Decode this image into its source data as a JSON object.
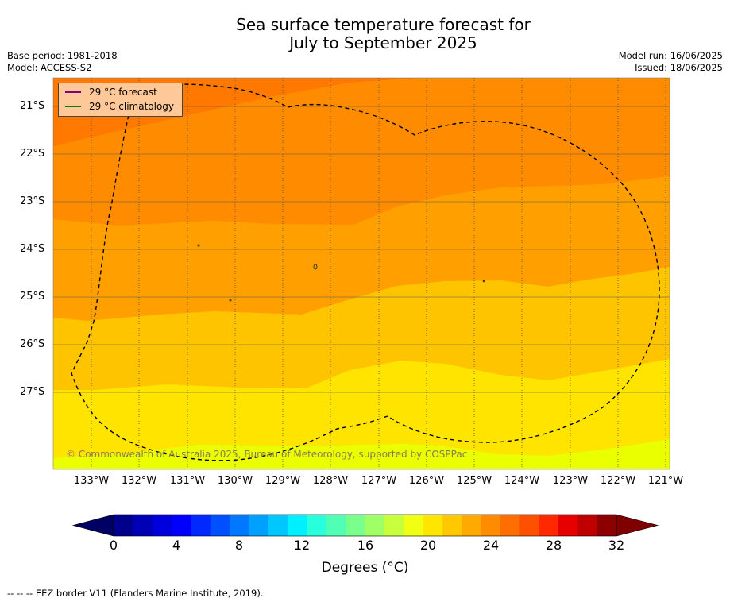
{
  "title_line1": "Sea surface temperature forecast for",
  "title_line2": "July to September 2025",
  "info_left": {
    "base_period": "Base period: 1981-2018",
    "model": "Model: ACCESS-S2"
  },
  "info_right": {
    "model_run": "Model run: 16/06/2025",
    "issued": "Issued: 18/06/2025"
  },
  "legend": {
    "forecast_label": "29 °C  forecast",
    "forecast_color": "#800080",
    "climatology_label": "29 °C  climatology",
    "climatology_color": "#008000"
  },
  "lat_labels": [
    "21°S",
    "22°S",
    "23°S",
    "24°S",
    "25°S",
    "26°S",
    "27°S"
  ],
  "lon_labels": [
    "133°W",
    "132°W",
    "131°W",
    "130°W",
    "129°W",
    "128°W",
    "127°W",
    "126°W",
    "125°W",
    "124°W",
    "123°W",
    "122°W",
    "121°W"
  ],
  "copyright": "© Commonwealth of Australia 2025, Bureau of Meteorology, supported by COSPPac",
  "colorbar": {
    "ticks": [
      "0",
      "4",
      "8",
      "12",
      "16",
      "20",
      "24",
      "28",
      "32"
    ],
    "label": "Degrees (°C)",
    "colors": [
      "#00008c",
      "#0000b4",
      "#0000dc",
      "#0000ff",
      "#0028ff",
      "#0050ff",
      "#0078ff",
      "#00a0ff",
      "#00c8ff",
      "#00f0ff",
      "#28ffdc",
      "#50ffb4",
      "#78ff8c",
      "#a0ff64",
      "#c8ff3c",
      "#f0ff14",
      "#ffe600",
      "#ffc800",
      "#ffaa00",
      "#ff8c00",
      "#ff6e00",
      "#ff5000",
      "#ff2800",
      "#e60000",
      "#be0000",
      "#8c0000"
    ],
    "under_color": "#000064",
    "over_color": "#800000"
  },
  "map_colors": {
    "sst_31_32": "#ff7800",
    "sst_30_31": "#ff8c00",
    "sst_29_30": "#ffa000",
    "sst_28_29": "#ffc400",
    "sst_27_28": "#ffe400",
    "sst_26_27": "#eaff00"
  },
  "footer": "--  --  -- EEZ border V11 (Flanders Marine Institute, 2019)."
}
